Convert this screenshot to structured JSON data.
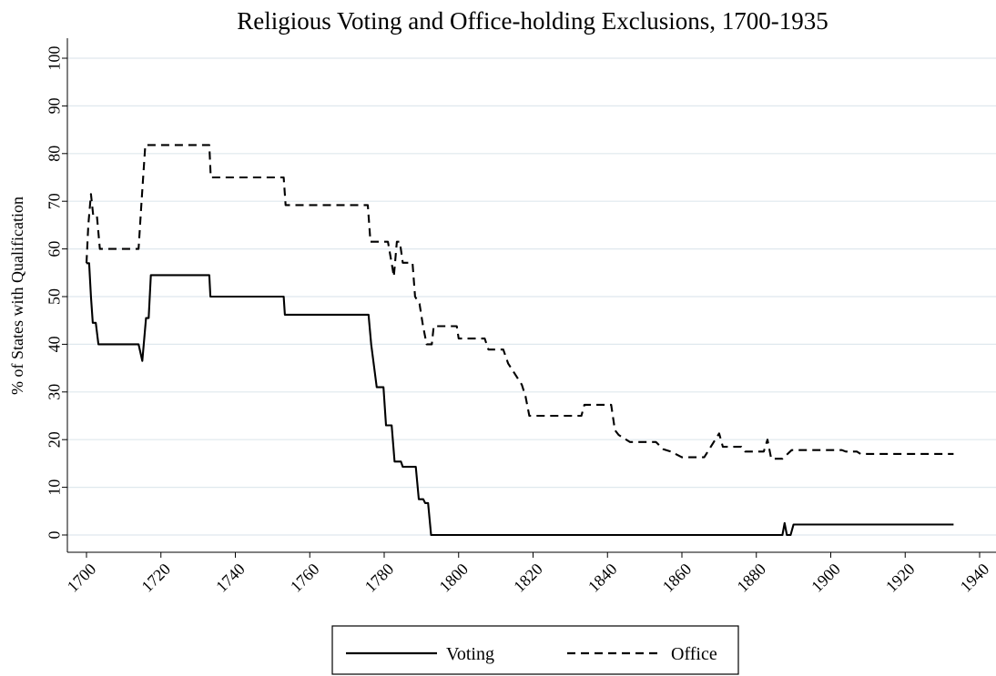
{
  "chart_data": {
    "type": "line",
    "title": "Religious Voting and Office-holding Exclusions, 1700-1935",
    "ylabel": "% of States with Qualification",
    "xlabel": "",
    "xlim": [
      1700,
      1940
    ],
    "ylim": [
      0,
      100
    ],
    "xticks": [
      1700,
      1720,
      1740,
      1760,
      1780,
      1800,
      1820,
      1840,
      1860,
      1880,
      1900,
      1920,
      1940
    ],
    "yticks": [
      0,
      10,
      20,
      30,
      40,
      50,
      60,
      70,
      80,
      90,
      100
    ],
    "grid": true,
    "legend_position": "bottom",
    "series": [
      {
        "name": "Voting",
        "dash": "solid",
        "color": "#000000",
        "points": [
          [
            1700,
            57
          ],
          [
            1700.7,
            57
          ],
          [
            1701.2,
            50
          ],
          [
            1701.7,
            44.5
          ],
          [
            1702.5,
            44.5
          ],
          [
            1703.2,
            40
          ],
          [
            1714,
            40
          ],
          [
            1715,
            36.5
          ],
          [
            1716,
            45.5
          ],
          [
            1716.7,
            45.5
          ],
          [
            1717.3,
            54.5
          ],
          [
            1733,
            54.5
          ],
          [
            1733.3,
            50
          ],
          [
            1753,
            50
          ],
          [
            1753.3,
            46.2
          ],
          [
            1775.8,
            46.2
          ],
          [
            1776.5,
            40
          ],
          [
            1778,
            31
          ],
          [
            1779.8,
            31
          ],
          [
            1780.5,
            23
          ],
          [
            1782,
            23
          ],
          [
            1782.8,
            15.4
          ],
          [
            1784.5,
            15.4
          ],
          [
            1785,
            14.3
          ],
          [
            1788.5,
            14.3
          ],
          [
            1789.3,
            7.5
          ],
          [
            1790.5,
            7.5
          ],
          [
            1791,
            6.7
          ],
          [
            1791.8,
            6.7
          ],
          [
            1792.6,
            0
          ],
          [
            1887,
            0
          ],
          [
            1887.6,
            2.5
          ],
          [
            1888.2,
            0
          ],
          [
            1889.2,
            0
          ],
          [
            1890,
            2.2
          ],
          [
            1933,
            2.2
          ]
        ]
      },
      {
        "name": "Office",
        "dash": "dashed",
        "color": "#000000",
        "points": [
          [
            1700,
            57
          ],
          [
            1700.5,
            65
          ],
          [
            1701.2,
            71.5
          ],
          [
            1701.8,
            67
          ],
          [
            1702.8,
            67
          ],
          [
            1703.6,
            60
          ],
          [
            1714,
            60
          ],
          [
            1714.8,
            70
          ],
          [
            1715.8,
            81.8
          ],
          [
            1733,
            81.8
          ],
          [
            1733.4,
            75
          ],
          [
            1753,
            75
          ],
          [
            1753.5,
            69.2
          ],
          [
            1775.6,
            69.2
          ],
          [
            1776.3,
            61.5
          ],
          [
            1781,
            61.5
          ],
          [
            1782,
            57
          ],
          [
            1782.6,
            54.2
          ],
          [
            1783.4,
            61.5
          ],
          [
            1784.2,
            61.5
          ],
          [
            1785,
            57.1
          ],
          [
            1787.6,
            57.1
          ],
          [
            1788.3,
            50
          ],
          [
            1789.5,
            48.5
          ],
          [
            1790.4,
            44
          ],
          [
            1791.4,
            40
          ],
          [
            1792.8,
            40
          ],
          [
            1793.3,
            43.8
          ],
          [
            1799.5,
            43.8
          ],
          [
            1800,
            41.2
          ],
          [
            1807,
            41.2
          ],
          [
            1808,
            38.9
          ],
          [
            1812,
            38.9
          ],
          [
            1813.3,
            36
          ],
          [
            1817,
            31.5
          ],
          [
            1818,
            29
          ],
          [
            1819,
            25
          ],
          [
            1833,
            25
          ],
          [
            1833.8,
            27.3
          ],
          [
            1841,
            27.3
          ],
          [
            1842,
            22
          ],
          [
            1843,
            21
          ],
          [
            1846,
            19.5
          ],
          [
            1853,
            19.5
          ],
          [
            1855,
            18
          ],
          [
            1857,
            17.5
          ],
          [
            1860,
            16.3
          ],
          [
            1866,
            16.3
          ],
          [
            1870,
            21.3
          ],
          [
            1871,
            18.5
          ],
          [
            1876,
            18.5
          ],
          [
            1877,
            17.5
          ],
          [
            1882,
            17.5
          ],
          [
            1883,
            20
          ],
          [
            1884,
            16
          ],
          [
            1887,
            16
          ],
          [
            1889.5,
            17.8
          ],
          [
            1903,
            17.8
          ],
          [
            1904,
            17.5
          ],
          [
            1907,
            17.5
          ],
          [
            1908,
            17
          ],
          [
            1933,
            17
          ]
        ]
      }
    ]
  }
}
